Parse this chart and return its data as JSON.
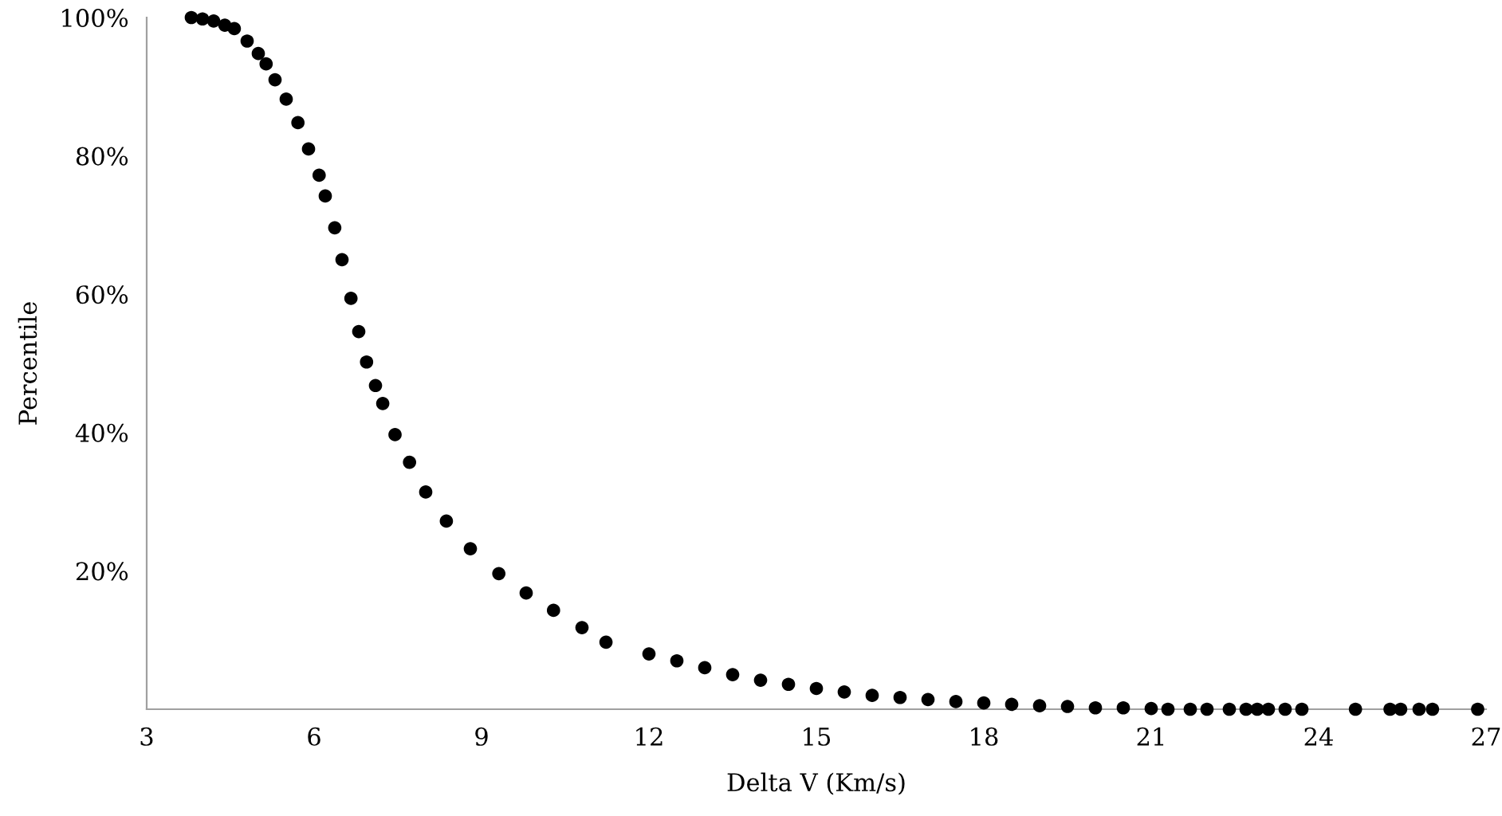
{
  "chart_data": {
    "type": "scatter",
    "xlabel": "Delta V (Km/s)",
    "ylabel": "Percentile",
    "x": [
      3.8,
      4.0,
      4.2,
      4.4,
      4.57,
      4.8,
      5.0,
      5.14,
      5.3,
      5.5,
      5.71,
      5.9,
      6.09,
      6.2,
      6.37,
      6.5,
      6.66,
      6.8,
      6.94,
      7.1,
      7.23,
      7.45,
      7.71,
      8.0,
      8.37,
      8.8,
      9.31,
      9.8,
      10.29,
      10.8,
      11.23,
      12.0,
      12.5,
      13.0,
      13.5,
      14.0,
      14.5,
      15.0,
      15.5,
      16.0,
      16.5,
      17.0,
      17.5,
      18.0,
      18.5,
      19.0,
      19.5,
      20.0,
      20.5,
      21.0,
      21.3,
      21.7,
      22.0,
      22.4,
      22.7,
      22.9,
      23.1,
      23.4,
      23.7,
      24.66,
      25.28,
      25.47,
      25.8,
      26.04,
      26.85
    ],
    "values": [
      100,
      99.8,
      99.5,
      98.9,
      98.4,
      96.6,
      94.8,
      93.3,
      91.0,
      88.2,
      84.8,
      81.0,
      77.2,
      74.2,
      69.6,
      65.0,
      59.4,
      54.6,
      50.2,
      46.8,
      44.2,
      39.7,
      35.7,
      31.4,
      27.2,
      23.2,
      19.6,
      16.8,
      14.3,
      11.8,
      9.7,
      8.0,
      7.0,
      6.0,
      5.0,
      4.2,
      3.6,
      3.0,
      2.5,
      2.0,
      1.7,
      1.4,
      1.1,
      0.9,
      0.7,
      0.5,
      0.4,
      0.2,
      0.2,
      0.1,
      0,
      0,
      0,
      0,
      0,
      0,
      0,
      0,
      0,
      0,
      0,
      0,
      0,
      0,
      0
    ],
    "color": "#000000",
    "marker": "circle",
    "xlim": [
      3,
      27
    ],
    "xticks": [
      3,
      6,
      9,
      12,
      15,
      18,
      21,
      24,
      27
    ],
    "ylim": [
      0,
      100
    ],
    "yticks": [
      {
        "value": 20,
        "label": "20%"
      },
      {
        "value": 40,
        "label": "40%"
      },
      {
        "value": 60,
        "label": "60%"
      },
      {
        "value": 80,
        "label": "80%"
      },
      {
        "value": 100,
        "label": "100%"
      }
    ],
    "grid": false,
    "legend": false
  }
}
